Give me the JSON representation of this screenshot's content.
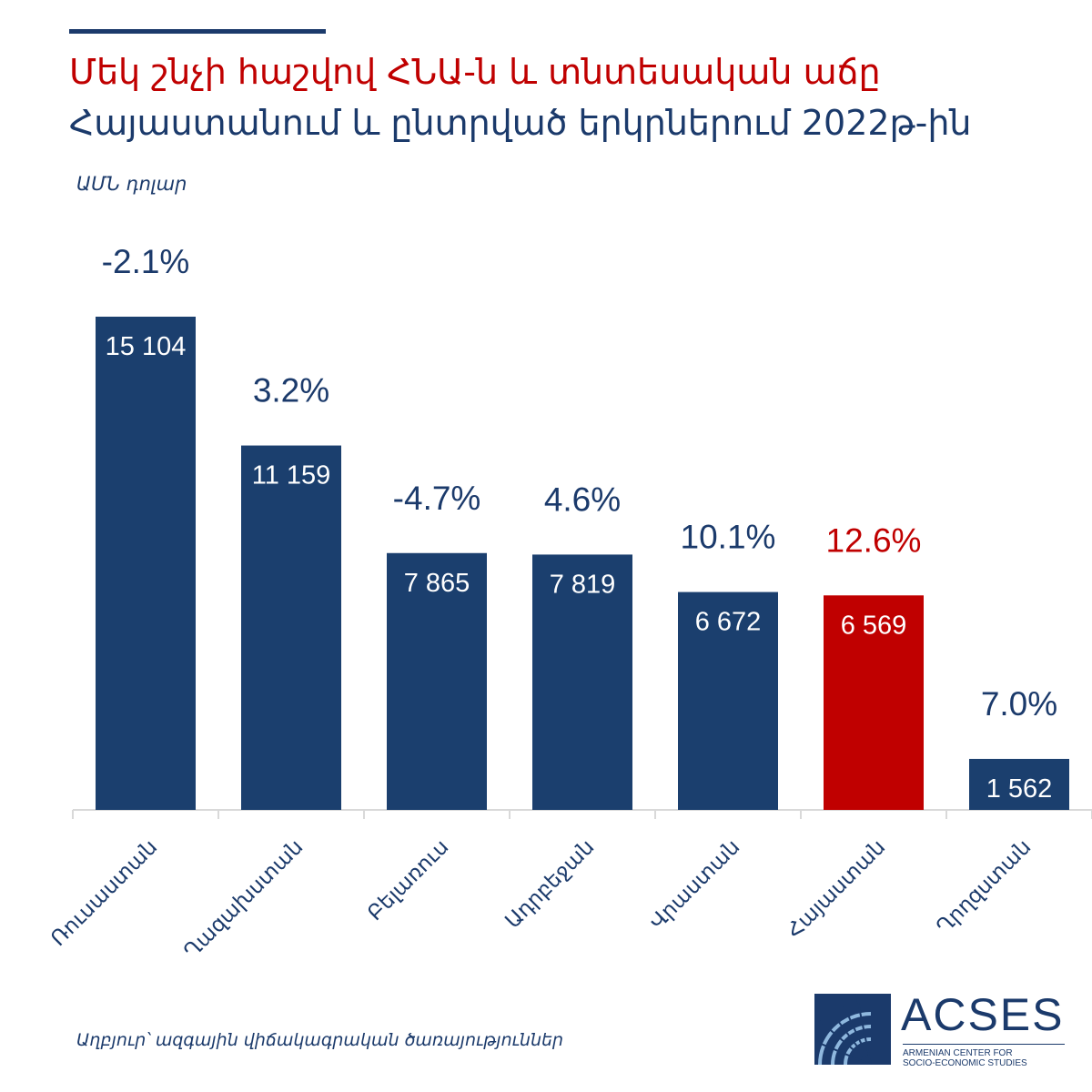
{
  "header": {
    "title": "Մեկ շնչի հաշվով ՀՆԱ-ն և տնտեսական աճը",
    "subtitle": "Հայաստանում և ընտրված երկրներում 2022թ-ին",
    "unit": "ԱՄՆ դոլար"
  },
  "footer": {
    "source": "Աղբյուր՝ ազգային վիճակագրական ծառայություններ"
  },
  "logo": {
    "name": "ACSES",
    "line1": "ARMENIAN CENTER FOR",
    "line2": "SOCIO-ECONOMIC STUDIES"
  },
  "colors": {
    "bar": "#1b3f6e",
    "highlight": "#c00000",
    "text_dark": "#1b3a6b",
    "axis": "#d9d9d9"
  },
  "chart_data": {
    "type": "bar",
    "categories": [
      "Ռուսաստան",
      "Ղազախստան",
      "Բելառուս",
      "Ադրբեջան",
      "Վրաստան",
      "Հայաստան",
      "Ղրղզստան"
    ],
    "values": [
      15104,
      11159,
      7865,
      7819,
      6672,
      6569,
      1562
    ],
    "value_labels": [
      "15 104",
      "11 159",
      "7 865",
      "7 819",
      "6 672",
      "6 569",
      "1 562"
    ],
    "growth_labels": [
      "-2.1%",
      "3.2%",
      "-4.7%",
      "4.6%",
      "10.1%",
      "12.6%",
      "7.0%"
    ],
    "highlight_index": 5,
    "ylim": [
      0,
      15104
    ],
    "grid": false,
    "legend": "none"
  }
}
